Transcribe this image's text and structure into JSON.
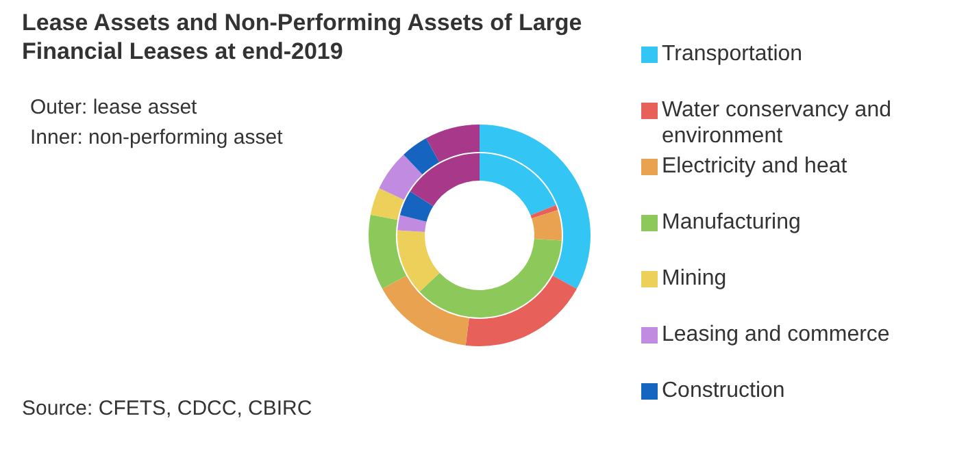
{
  "chart_data": {
    "type": "donut",
    "title": "Lease Assets and Non-Performing Assets of Large Financial Leases at end-2019",
    "annotations": [
      "Outer: lease asset",
      "Inner: non-performing asset",
      "Source: CFETS, CDCC, CBIRC"
    ],
    "categories": [
      "Transportation",
      "Water conservancy and environment",
      "Electricity and heat",
      "Manufacturing",
      "Mining",
      "Leasing and commerce",
      "Construction",
      null
    ],
    "colors": [
      "#33c6f5",
      "#e8605a",
      "#e9a24f",
      "#8dc95a",
      "#ecd05a",
      "#c08be0",
      "#1565c0",
      "#a8398a"
    ],
    "series": [
      {
        "values": [
          33,
          19,
          15,
          11,
          4,
          6,
          4,
          8
        ]
      },
      {
        "values": [
          19,
          1,
          6,
          37,
          13,
          3,
          5,
          16
        ]
      }
    ],
    "legend": "right"
  }
}
